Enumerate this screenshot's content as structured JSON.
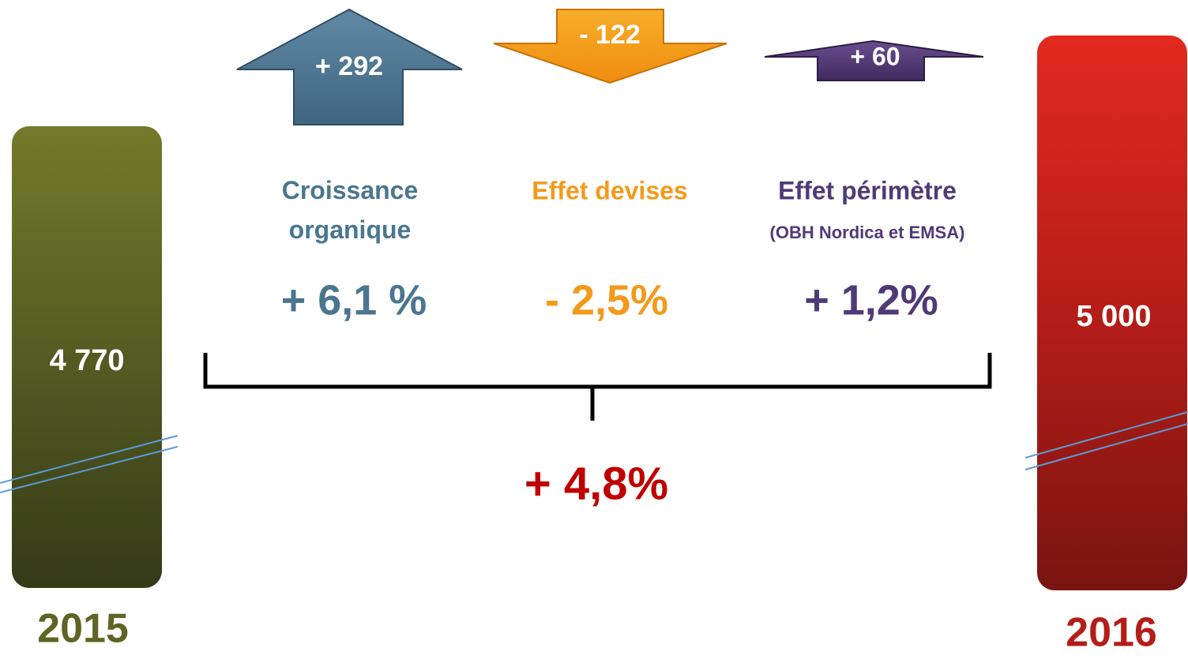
{
  "bars": [
    {
      "value": "4 770",
      "year": "2015"
    },
    {
      "value": "5 000",
      "year": "2016"
    }
  ],
  "effects": [
    {
      "amount": "+ 292",
      "label": "Croissance organique",
      "percent": "+ 6,1 %"
    },
    {
      "amount": "- 122",
      "label": "Effet devises",
      "percent": "- 2,5%"
    },
    {
      "amount": "+ 60",
      "label": "Effet périmètre",
      "sublabel": "(OBH Nordica et EMSA)",
      "percent": "+ 1,2%"
    }
  ],
  "total": "+ 4,8%"
}
